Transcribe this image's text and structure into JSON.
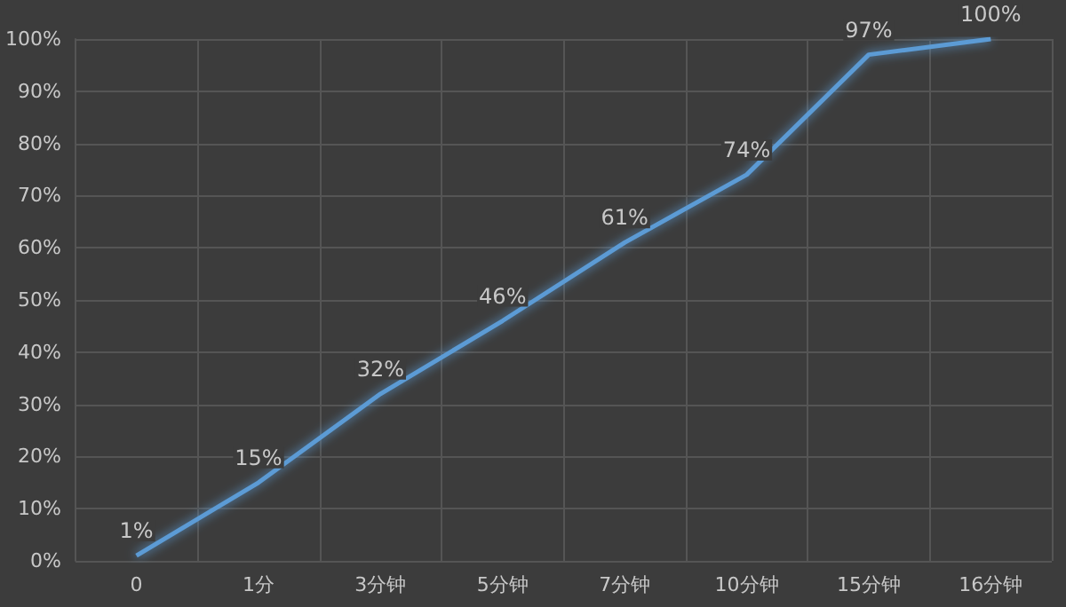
{
  "chart_data": {
    "type": "line",
    "categories": [
      "0",
      "1分",
      "3分钟",
      "5分钟",
      "7分钟",
      "10分钟",
      "15分钟",
      "16分钟"
    ],
    "series": [
      {
        "color": "#5b9bd5",
        "values": [
          1,
          15,
          32,
          46,
          61,
          74,
          97,
          100
        ],
        "value_labels": [
          "1%",
          "15%",
          "32%",
          "46%",
          "61%",
          "74%",
          "97%",
          "100%"
        ]
      }
    ],
    "ylim": [
      0,
      100
    ],
    "yticks": [
      {
        "value": 0,
        "label": "0%"
      },
      {
        "value": 10,
        "label": "10%"
      },
      {
        "value": 20,
        "label": "20%"
      },
      {
        "value": 30,
        "label": "30%"
      },
      {
        "value": 40,
        "label": "40%"
      },
      {
        "value": 50,
        "label": "50%"
      },
      {
        "value": 60,
        "label": "60%"
      },
      {
        "value": 70,
        "label": "70%"
      },
      {
        "value": 80,
        "label": "80%"
      },
      {
        "value": 90,
        "label": "90%"
      },
      {
        "value": 100,
        "label": "100%"
      }
    ],
    "grid": true,
    "marker": "none",
    "line_style": "solid"
  }
}
